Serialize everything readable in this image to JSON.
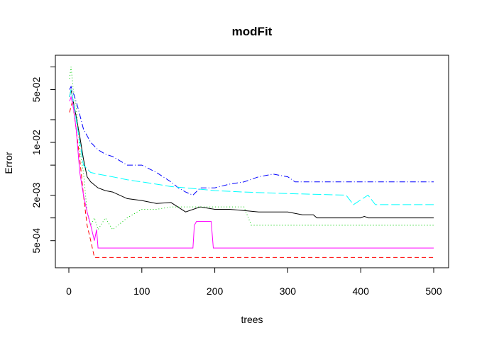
{
  "chart_data": {
    "type": "line",
    "title": "modFit",
    "xlabel": "trees",
    "ylabel": "Error",
    "xlim": [
      0,
      500
    ],
    "ylim": [
      0.00026,
      0.12
    ],
    "y_scale": "log",
    "x_ticks": [
      0,
      100,
      200,
      300,
      400,
      500
    ],
    "x_tick_labels": [
      "0",
      "100",
      "200",
      "300",
      "400",
      "500"
    ],
    "y_ticks": [
      0.0005,
      0.002,
      0.01,
      0.05
    ],
    "y_tick_labels": [
      "5e-04",
      "2e-03",
      "1e-02",
      "5e-02"
    ],
    "grid": false,
    "legend": "none",
    "series": [
      {
        "color": "#000000",
        "dash": "solid",
        "x": [
          1,
          3,
          6,
          10,
          15,
          20,
          25,
          30,
          40,
          50,
          60,
          80,
          100,
          120,
          140,
          160,
          180,
          200,
          220,
          240,
          260,
          280,
          300,
          320,
          335,
          340,
          400,
          405,
          410,
          500
        ],
        "y": [
          0.04,
          0.05,
          0.035,
          0.022,
          0.012,
          0.006,
          0.0035,
          0.003,
          0.0025,
          0.0023,
          0.0022,
          0.0018,
          0.0017,
          0.00155,
          0.0016,
          0.0012,
          0.0014,
          0.0013,
          0.0013,
          0.00125,
          0.0012,
          0.0012,
          0.0012,
          0.0011,
          0.0011,
          0.001,
          0.001,
          0.00105,
          0.001,
          0.001
        ]
      },
      {
        "color": "#ff0000",
        "dash": "dashed",
        "x": [
          1,
          3,
          5,
          10,
          15,
          20,
          25,
          30,
          35,
          40,
          500
        ],
        "y": [
          0.025,
          0.03,
          0.035,
          0.015,
          0.006,
          0.002,
          0.0008,
          0.0005,
          0.0003,
          0.0003,
          0.0003
        ]
      },
      {
        "color": "#00cd00",
        "dash": "dotted",
        "x": [
          1,
          3,
          6,
          10,
          15,
          20,
          25,
          30,
          35,
          40,
          50,
          60,
          80,
          100,
          120,
          140,
          160,
          180,
          200,
          240,
          250,
          300,
          330,
          335,
          500
        ],
        "y": [
          0.07,
          0.1,
          0.05,
          0.03,
          0.008,
          0.004,
          0.0012,
          0.0008,
          0.001,
          0.0007,
          0.001,
          0.0007,
          0.001,
          0.0013,
          0.0013,
          0.0014,
          0.0014,
          0.0014,
          0.0014,
          0.0014,
          0.0008,
          0.0008,
          0.0008,
          0.0008,
          0.0008
        ]
      },
      {
        "color": "#0000ff",
        "dash": "dashdot",
        "x": [
          1,
          3,
          8,
          12,
          20,
          30,
          40,
          50,
          60,
          80,
          100,
          120,
          140,
          150,
          160,
          170,
          180,
          200,
          220,
          240,
          260,
          280,
          300,
          310,
          500
        ],
        "y": [
          0.05,
          0.055,
          0.04,
          0.03,
          0.015,
          0.01,
          0.008,
          0.007,
          0.0065,
          0.005,
          0.005,
          0.004,
          0.003,
          0.0025,
          0.0022,
          0.002,
          0.0025,
          0.0025,
          0.0028,
          0.003,
          0.0035,
          0.0038,
          0.0035,
          0.003,
          0.003
        ]
      },
      {
        "color": "#00ffff",
        "dash": "longdash",
        "x": [
          1,
          3,
          6,
          10,
          20,
          30,
          40,
          60,
          80,
          100,
          120,
          140,
          160,
          180,
          200,
          240,
          300,
          380,
          390,
          410,
          420,
          500
        ],
        "y": [
          0.04,
          0.05,
          0.035,
          0.02,
          0.005,
          0.004,
          0.0038,
          0.0035,
          0.0032,
          0.003,
          0.0028,
          0.0026,
          0.0025,
          0.0024,
          0.0023,
          0.0022,
          0.0021,
          0.002,
          0.0015,
          0.002,
          0.0015,
          0.0015
        ]
      },
      {
        "color": "#ff00ff",
        "dash": "solid",
        "x": [
          1,
          3,
          6,
          10,
          15,
          20,
          25,
          30,
          35,
          38,
          40,
          60,
          170,
          172,
          175,
          190,
          195,
          198,
          500
        ],
        "y": [
          0.035,
          0.04,
          0.03,
          0.015,
          0.004,
          0.002,
          0.0012,
          0.0008,
          0.0005,
          0.0007,
          0.0004,
          0.0004,
          0.0004,
          0.0008,
          0.0009,
          0.0009,
          0.0009,
          0.0004,
          0.0004
        ]
      }
    ]
  }
}
